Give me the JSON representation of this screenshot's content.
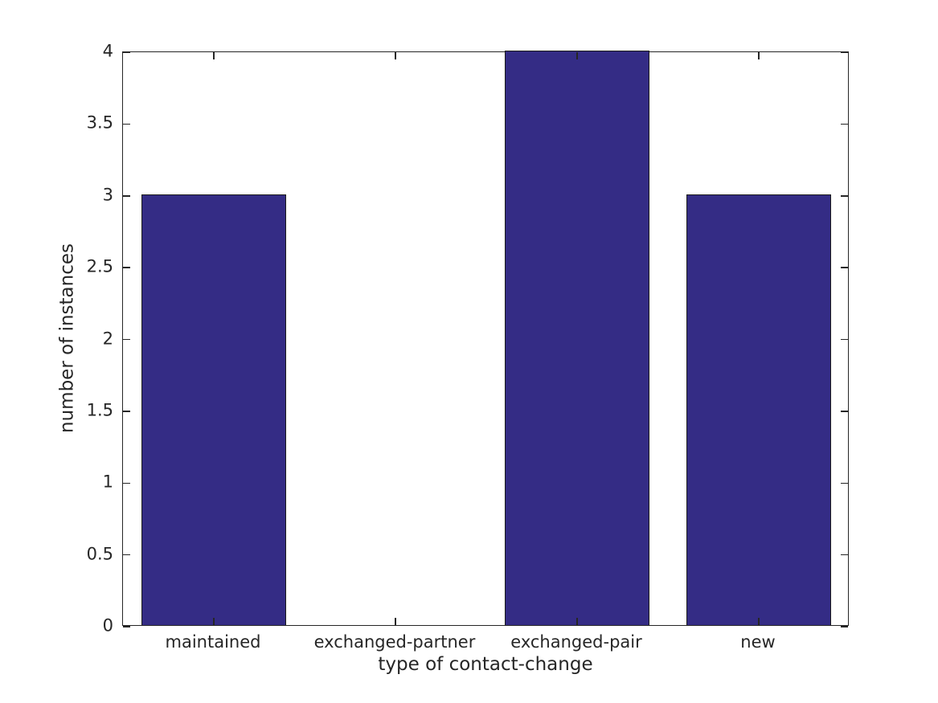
{
  "chart_data": {
    "type": "bar",
    "title": "",
    "xlabel": "type of contact-change",
    "ylabel": "number of instances",
    "categories": [
      "maintained",
      "exchanged-partner",
      "exchanged-pair",
      "new"
    ],
    "values": [
      3,
      0,
      4,
      3
    ],
    "ylim": [
      0,
      4
    ],
    "ytick_step": 0.5,
    "ytick_labels": [
      "0",
      "0.5",
      "1",
      "1.5",
      "2",
      "2.5",
      "3",
      "3.5",
      "4"
    ],
    "bar_width_fraction": 0.8,
    "grid": false,
    "legend": "none",
    "box": "on",
    "tick_direction": "in",
    "colors": {
      "bar_fill": "#342c85",
      "bar_edge": "#1a1a1a",
      "axis": "#262626",
      "text": "#262626",
      "background": "#ffffff"
    }
  }
}
